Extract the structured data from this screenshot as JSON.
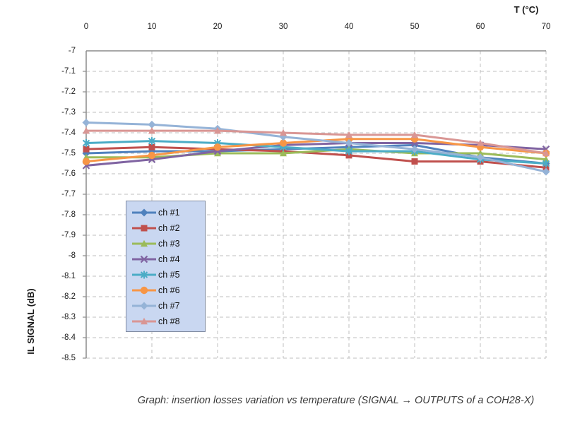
{
  "figure": {
    "caption": "Graph: insertion losses variation vs temperature (SIGNAL → OUTPUTS of a COH28-X)"
  },
  "chart_data": {
    "type": "line",
    "title": "",
    "xlabel": "T (°C)",
    "ylabel": "IL SIGNAL (dB)",
    "x": [
      0,
      10,
      20,
      30,
      40,
      50,
      60,
      70
    ],
    "x_tick_labels": [
      "0",
      "10",
      "20",
      "30",
      "40",
      "50",
      "60",
      "70"
    ],
    "y_tick_labels": [
      "-7",
      "-7.1",
      "-7.2",
      "-7.3",
      "-7.4",
      "-7.5",
      "-7.6",
      "-7.7",
      "-7.8",
      "-7.9",
      "-8",
      "-8.1",
      "-8.2",
      "-8.3",
      "-8.4",
      "-8.5"
    ],
    "ylim": [
      -8.5,
      -7
    ],
    "y_tick_step": 0.1,
    "grid": "dashed",
    "legend_position": "inside-left",
    "series": [
      {
        "name": "ch #1",
        "color": "#4F81BD",
        "marker": "diamond",
        "values": [
          -7.5,
          -7.49,
          -7.49,
          -7.48,
          -7.47,
          -7.46,
          -7.52,
          -7.55
        ]
      },
      {
        "name": "ch #2",
        "color": "#C0504D",
        "marker": "square",
        "values": [
          -7.48,
          -7.47,
          -7.48,
          -7.49,
          -7.51,
          -7.54,
          -7.54,
          -7.57
        ]
      },
      {
        "name": "ch #3",
        "color": "#9BBB59",
        "marker": "triangle",
        "values": [
          -7.52,
          -7.52,
          -7.5,
          -7.5,
          -7.48,
          -7.5,
          -7.5,
          -7.53
        ]
      },
      {
        "name": "ch #4",
        "color": "#8064A2",
        "marker": "x",
        "values": [
          -7.56,
          -7.53,
          -7.49,
          -7.46,
          -7.45,
          -7.45,
          -7.46,
          -7.48
        ]
      },
      {
        "name": "ch #5",
        "color": "#4BACC6",
        "marker": "asterisk",
        "values": [
          -7.45,
          -7.44,
          -7.45,
          -7.47,
          -7.49,
          -7.49,
          -7.53,
          -7.55
        ]
      },
      {
        "name": "ch #6",
        "color": "#F79646",
        "marker": "circle",
        "values": [
          -7.54,
          -7.51,
          -7.47,
          -7.45,
          -7.43,
          -7.43,
          -7.47,
          -7.5
        ]
      },
      {
        "name": "ch #7",
        "color": "#95B3D7",
        "marker": "diamond",
        "values": [
          -7.35,
          -7.36,
          -7.38,
          -7.42,
          -7.45,
          -7.48,
          -7.52,
          -7.59
        ]
      },
      {
        "name": "ch #8",
        "color": "#D99694",
        "marker": "triangle",
        "values": [
          -7.39,
          -7.39,
          -7.39,
          -7.4,
          -7.41,
          -7.41,
          -7.45,
          -7.5
        ]
      }
    ],
    "style": {
      "grid_color": "#BFBFBF",
      "axis_color": "#8C8C8C",
      "legend_fill": "#C9D7F1",
      "legend_border": "#7F8AA0",
      "line_width": 3
    }
  }
}
